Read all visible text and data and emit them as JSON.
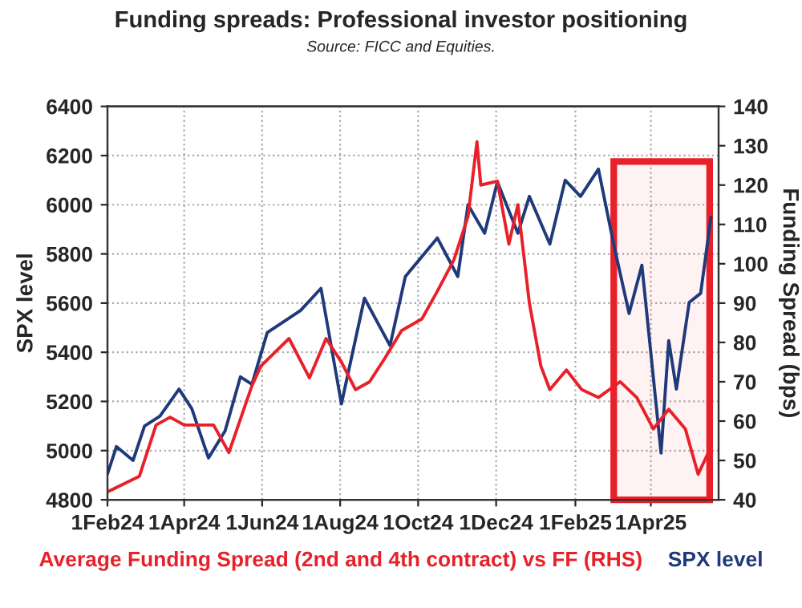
{
  "chart_data": {
    "type": "line",
    "title": "Funding spreads: Professional investor positioning",
    "subtitle": "Source: FICC and Equities.",
    "ylabel": "SPX level",
    "y2label": "Funding Spread (bps)",
    "xlim": [
      "2024-02-01",
      "2025-05-24"
    ],
    "xticks": [
      {
        "value": "2024-02-01",
        "label": "1Feb24"
      },
      {
        "value": "2024-04-01",
        "label": "1Apr24"
      },
      {
        "value": "2024-06-01",
        "label": "1Jun24"
      },
      {
        "value": "2024-08-01",
        "label": "1Aug24"
      },
      {
        "value": "2024-10-01",
        "label": "1Oct24"
      },
      {
        "value": "2024-12-01",
        "label": "1Dec24"
      },
      {
        "value": "2025-02-01",
        "label": "1Feb25"
      },
      {
        "value": "2025-04-01",
        "label": "1Apr25"
      }
    ],
    "ylim": [
      4800,
      6400
    ],
    "yticks": [
      4800,
      5000,
      5200,
      5400,
      5600,
      5800,
      6000,
      6200,
      6400
    ],
    "y2lim": [
      40,
      140
    ],
    "y2ticks": [
      40,
      50,
      60,
      70,
      80,
      90,
      100,
      110,
      120,
      130,
      140
    ],
    "grid": true,
    "legend": "bottom",
    "bands": [
      {
        "axis": "x",
        "from": "2025-03-03",
        "to": "2025-05-17",
        "color": "#e8202a"
      }
    ],
    "series": [
      {
        "name": "Average Funding Spread (2nd and 4th contract) vs FF (RHS)",
        "color": "#e8202a",
        "axis": "y2",
        "x": [
          "2024-02-01",
          "2024-02-26",
          "2024-03-10",
          "2024-03-21",
          "2024-04-01",
          "2024-04-24",
          "2024-05-06",
          "2024-05-24",
          "2024-05-31",
          "2024-06-22",
          "2024-07-08",
          "2024-07-21",
          "2024-08-02",
          "2024-08-13",
          "2024-08-24",
          "2024-09-05",
          "2024-09-18",
          "2024-10-04",
          "2024-10-16",
          "2024-10-29",
          "2024-11-09",
          "2024-11-16",
          "2024-11-19",
          "2024-12-02",
          "2024-12-11",
          "2024-12-18",
          "2024-12-27",
          "2025-01-05",
          "2025-01-12",
          "2025-01-25",
          "2025-02-06",
          "2025-02-19",
          "2025-03-08",
          "2025-03-21",
          "2025-04-03",
          "2025-04-15",
          "2025-04-28",
          "2025-05-08",
          "2025-05-16",
          "2025-05-18"
        ],
        "values": [
          42,
          46,
          59,
          61,
          59,
          59,
          52,
          69,
          74,
          81,
          71,
          81,
          75,
          68,
          70,
          76,
          83,
          86,
          93,
          101,
          112,
          131,
          120,
          121,
          105,
          115,
          90,
          74,
          68,
          73,
          68,
          66,
          70,
          66,
          58,
          63,
          58,
          46.5,
          52,
          57
        ]
      },
      {
        "name": "SPX level",
        "color": "#1f3a7a",
        "x": [
          "2024-02-01",
          "2024-02-08",
          "2024-02-21",
          "2024-03-01",
          "2024-03-13",
          "2024-03-28",
          "2024-04-07",
          "2024-04-20",
          "2024-05-03",
          "2024-05-15",
          "2024-05-24",
          "2024-06-05",
          "2024-07-01",
          "2024-07-17",
          "2024-08-02",
          "2024-08-20",
          "2024-09-09",
          "2024-09-21",
          "2024-10-16",
          "2024-11-01",
          "2024-11-09",
          "2024-11-22",
          "2024-12-02",
          "2024-12-18",
          "2024-12-27",
          "2025-01-12",
          "2025-01-24",
          "2025-02-05",
          "2025-02-19",
          "2025-03-03",
          "2025-03-15",
          "2025-03-25",
          "2025-04-09",
          "2025-04-15",
          "2025-04-21",
          "2025-05-01",
          "2025-05-10",
          "2025-05-18"
        ],
        "values": [
          4905,
          5016,
          4960,
          5100,
          5140,
          5250,
          5170,
          4970,
          5080,
          5300,
          5270,
          5480,
          5570,
          5660,
          5190,
          5620,
          5427,
          5708,
          5865,
          5708,
          6000,
          5884,
          6093,
          5884,
          6034,
          5840,
          6100,
          6034,
          6145,
          5838,
          5558,
          5754,
          4990,
          5447,
          5250,
          5603,
          5640,
          5949
        ]
      }
    ]
  }
}
